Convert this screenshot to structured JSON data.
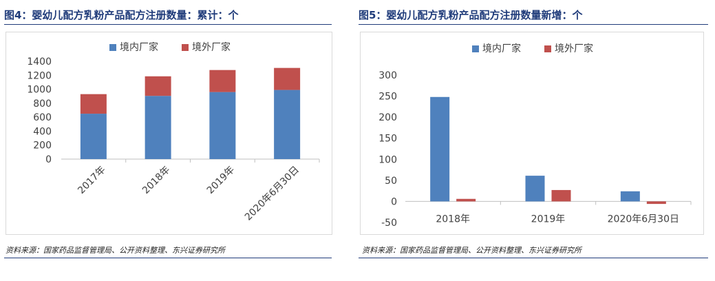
{
  "figures": [
    {
      "title": "图4：婴幼儿配方乳粉产品配方注册数量：累计：个",
      "source": "资料来源：国家药品监督管理局、公开资料整理、东兴证券研究所"
    },
    {
      "title": "图5：婴幼儿配方乳粉产品配方注册数量新增：个",
      "source": "资料来源：国家药品监督管理局、公开资料整理、东兴证券研究所"
    }
  ],
  "colors": {
    "domestic": "#4f81bd",
    "foreign": "#c0504d",
    "axis": "#bfbfbf",
    "text": "#404040"
  },
  "chart_data": [
    {
      "type": "bar",
      "stacked": true,
      "categories": [
        "2017年",
        "2018年",
        "2019年",
        "2020年6月30日"
      ],
      "series": [
        {
          "name": "境内厂家",
          "values": [
            650,
            905,
            960,
            990
          ]
        },
        {
          "name": "境外厂家",
          "values": [
            280,
            280,
            315,
            315
          ]
        }
      ],
      "yticks": [
        "0",
        "200",
        "400",
        "600",
        "800",
        "1000",
        "1200",
        "1400"
      ],
      "ylim": [
        0,
        1400
      ],
      "legend": "top",
      "grid": false
    },
    {
      "type": "bar",
      "stacked": false,
      "categories": [
        "2018年",
        "2019年",
        "2020年6月30日"
      ],
      "series": [
        {
          "name": "境内厂家",
          "values": [
            248,
            61,
            24
          ]
        },
        {
          "name": "境外厂家",
          "values": [
            6,
            27,
            -6
          ]
        }
      ],
      "yticks": [
        "-50",
        "0",
        "50",
        "100",
        "150",
        "200",
        "250",
        "300"
      ],
      "ylim": [
        -50,
        300
      ],
      "legend": "top",
      "grid": false
    }
  ]
}
